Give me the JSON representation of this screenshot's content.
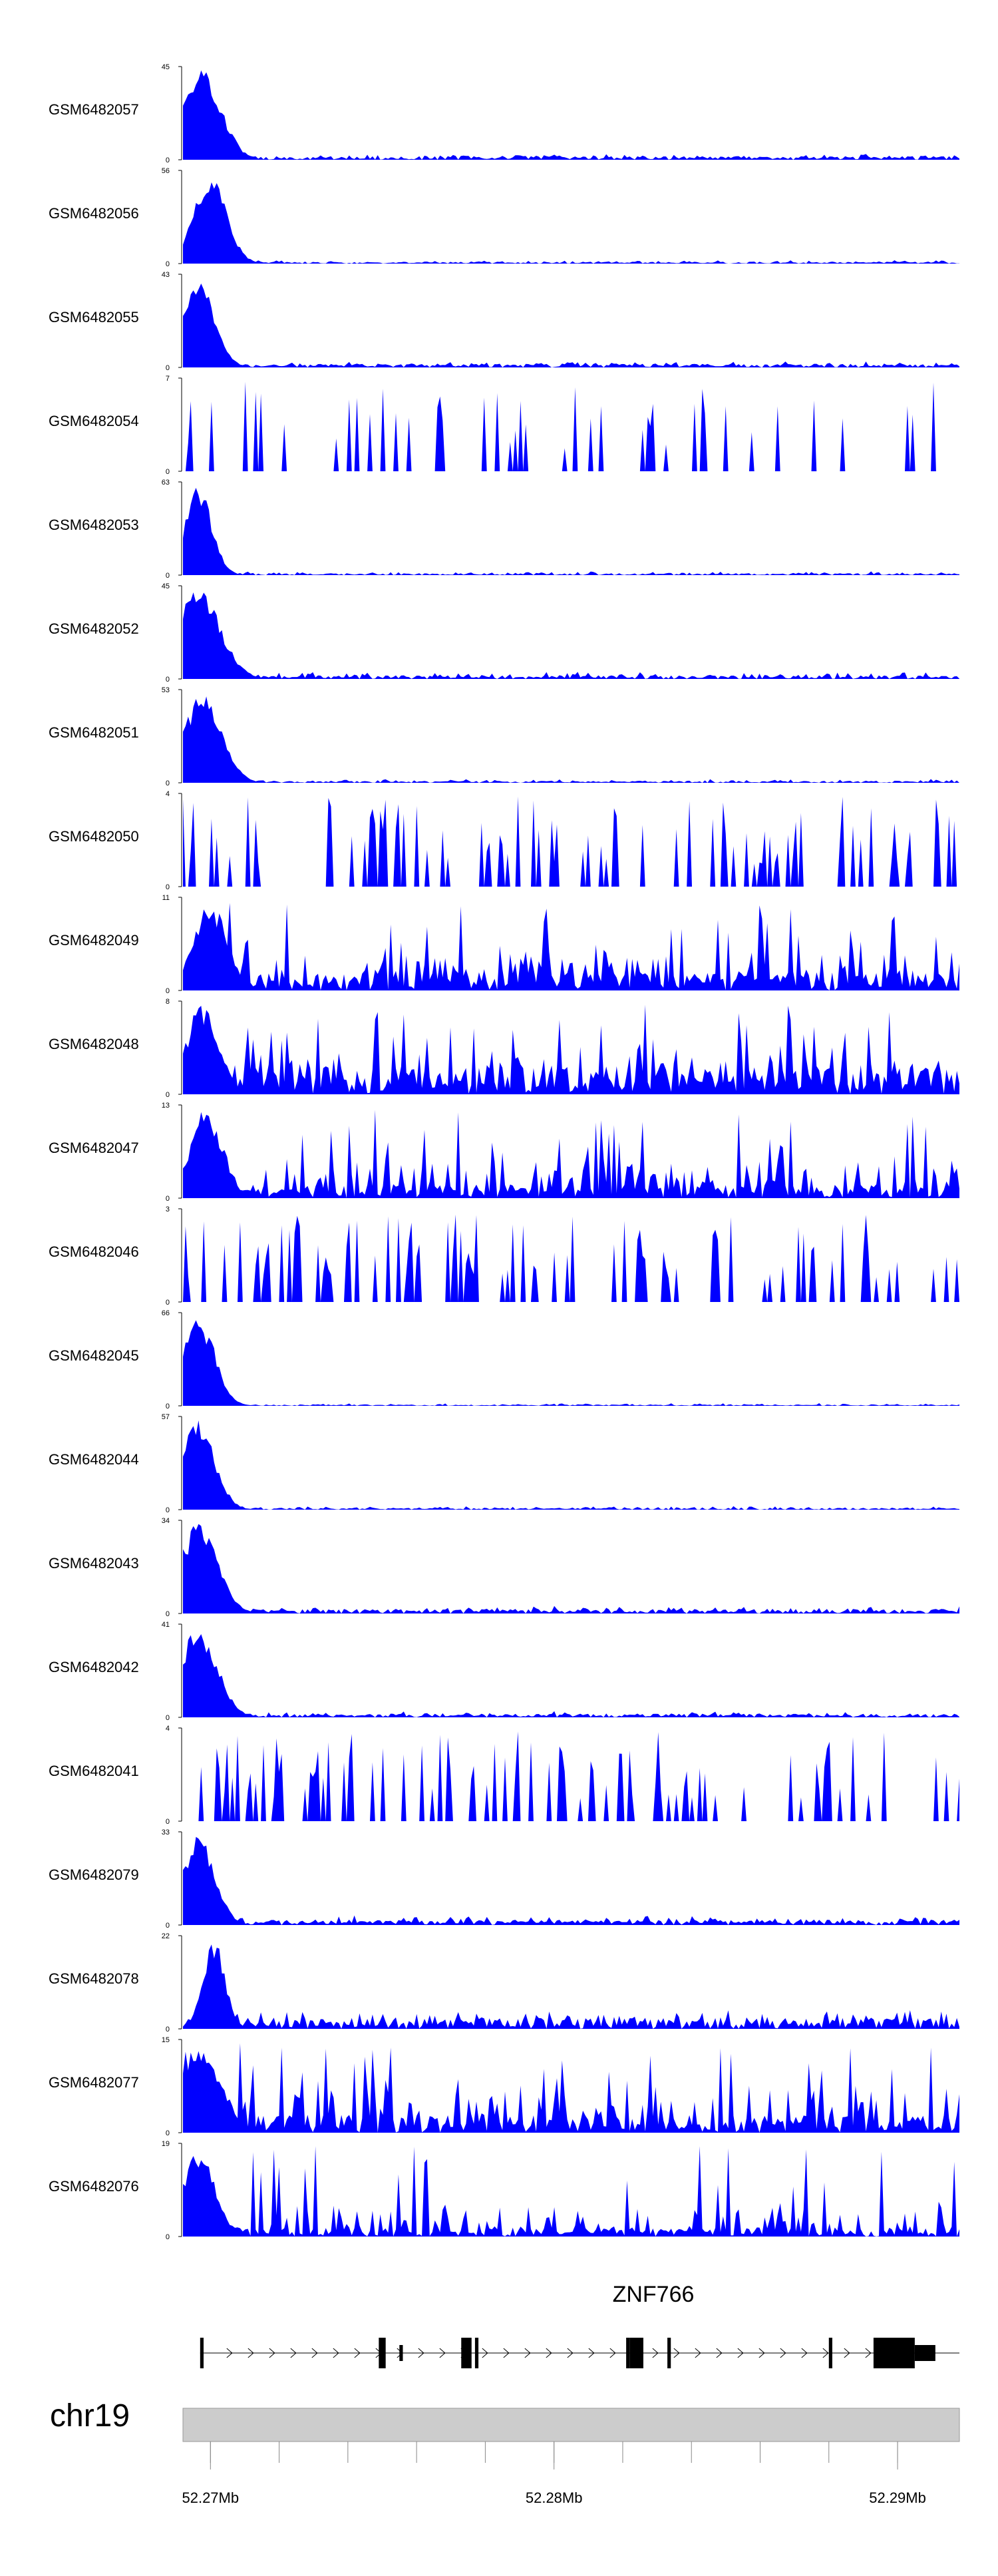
{
  "colors": {
    "signal": "#0000ff",
    "axis": "#000000",
    "ideogram": "#cccccc",
    "ideogram_border": "#999999",
    "gene": "#000000"
  },
  "chart_data": {
    "type": "area",
    "genome": {
      "chromosome": "chr19",
      "start": 52.2692,
      "end": 52.2918,
      "unit": "Mb"
    },
    "x_ticks": [
      {
        "value": 52.27,
        "label": "52.27Mb"
      },
      {
        "value": 52.28,
        "label": "52.28Mb"
      },
      {
        "value": 52.29,
        "label": "52.29Mb"
      }
    ],
    "minor_ticks": [
      52.27,
      52.272,
      52.274,
      52.276,
      52.278,
      52.28,
      52.282,
      52.284,
      52.286,
      52.288,
      52.29
    ],
    "gene": {
      "name": "ZNF766",
      "start": 52.2697,
      "end": 52.2918,
      "strand": "+",
      "exons": [
        {
          "start": 52.2697,
          "end": 52.2698,
          "thick": true
        },
        {
          "start": 52.2749,
          "end": 52.2751,
          "thick": true
        },
        {
          "start": 52.2755,
          "end": 52.2756,
          "thick": false
        },
        {
          "start": 52.2773,
          "end": 52.2776,
          "thick": true
        },
        {
          "start": 52.2777,
          "end": 52.2778,
          "thick": true
        },
        {
          "start": 52.2821,
          "end": 52.2822,
          "thick": true
        },
        {
          "start": 52.2822,
          "end": 52.2826,
          "thick": true
        },
        {
          "start": 52.2833,
          "end": 52.2834,
          "thick": true
        },
        {
          "start": 52.288,
          "end": 52.2881,
          "thick": true
        },
        {
          "start": 52.2893,
          "end": 52.2905,
          "thick": true
        },
        {
          "start": 52.2905,
          "end": 52.2911,
          "thick": false
        }
      ]
    },
    "tracks": [
      {
        "name": "GSM6482057",
        "ymax": 45,
        "shape": "peak",
        "pos": 0.025,
        "width": 0.035,
        "base": 0.04,
        "noise": 0.07
      },
      {
        "name": "GSM6482056",
        "ymax": 56,
        "shape": "peak",
        "pos": 0.035,
        "width": 0.03,
        "base": 0.02,
        "noise": 0.05
      },
      {
        "name": "GSM6482055",
        "ymax": 43,
        "shape": "peak",
        "pos": 0.02,
        "width": 0.03,
        "base": 0.04,
        "noise": 0.09
      },
      {
        "name": "GSM6482054",
        "ymax": 7,
        "shape": "sparse",
        "density": 0.45
      },
      {
        "name": "GSM6482053",
        "ymax": 63,
        "shape": "peak",
        "pos": 0.02,
        "width": 0.025,
        "base": 0.02,
        "noise": 0.06
      },
      {
        "name": "GSM6482052",
        "ymax": 45,
        "shape": "peak",
        "pos": 0.02,
        "width": 0.04,
        "base": 0.04,
        "noise": 0.1
      },
      {
        "name": "GSM6482051",
        "ymax": 53,
        "shape": "peak",
        "pos": 0.025,
        "width": 0.035,
        "base": 0.02,
        "noise": 0.06
      },
      {
        "name": "GSM6482050",
        "ymax": 4,
        "shape": "sparse",
        "density": 0.75
      },
      {
        "name": "GSM6482049",
        "ymax": 11,
        "shape": "noisy",
        "pos": 0.035,
        "width": 0.03,
        "base": 0.2,
        "noise": 0.3
      },
      {
        "name": "GSM6482048",
        "ymax": 8,
        "shape": "noisy",
        "pos": 0.025,
        "width": 0.03,
        "base": 0.3,
        "noise": 0.35
      },
      {
        "name": "GSM6482047",
        "ymax": 13,
        "shape": "noisy",
        "pos": 0.03,
        "width": 0.03,
        "base": 0.15,
        "noise": 0.35
      },
      {
        "name": "GSM6482046",
        "ymax": 3,
        "shape": "sparse",
        "density": 0.8
      },
      {
        "name": "GSM6482045",
        "ymax": 66,
        "shape": "peak",
        "pos": 0.02,
        "width": 0.03,
        "base": 0.015,
        "noise": 0.04
      },
      {
        "name": "GSM6482044",
        "ymax": 57,
        "shape": "peak",
        "pos": 0.02,
        "width": 0.03,
        "base": 0.02,
        "noise": 0.05
      },
      {
        "name": "GSM6482043",
        "ymax": 34,
        "shape": "peak",
        "pos": 0.02,
        "width": 0.035,
        "base": 0.05,
        "noise": 0.09
      },
      {
        "name": "GSM6482042",
        "ymax": 41,
        "shape": "peak",
        "pos": 0.02,
        "width": 0.035,
        "base": 0.04,
        "noise": 0.08
      },
      {
        "name": "GSM6482041",
        "ymax": 4,
        "shape": "sparse",
        "density": 0.75
      },
      {
        "name": "GSM6482079",
        "ymax": 33,
        "shape": "peak",
        "pos": 0.02,
        "width": 0.03,
        "base": 0.06,
        "noise": 0.12
      },
      {
        "name": "GSM6482078",
        "ymax": 22,
        "shape": "peak",
        "pos": 0.04,
        "width": 0.02,
        "base": 0.12,
        "noise": 0.25
      },
      {
        "name": "GSM6482077",
        "ymax": 15,
        "shape": "noisy",
        "pos": 0.02,
        "width": 0.04,
        "base": 0.2,
        "noise": 0.4
      },
      {
        "name": "GSM6482076",
        "ymax": 19,
        "shape": "noisy",
        "pos": 0.02,
        "width": 0.03,
        "base": 0.1,
        "noise": 0.3
      }
    ]
  }
}
